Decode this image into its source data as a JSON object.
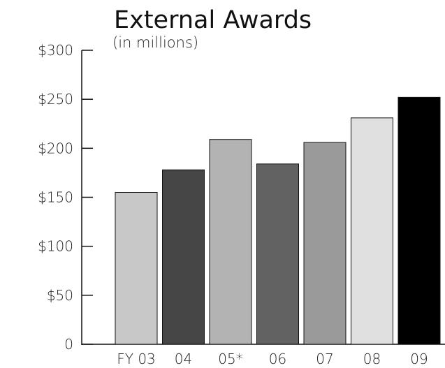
{
  "chart_data": {
    "type": "bar",
    "title": "External Awards",
    "subtitle": "(in millions)",
    "categories": [
      "FY 03",
      "04",
      "05*",
      "06",
      "07",
      "08",
      "09"
    ],
    "values": [
      155,
      178,
      209,
      184,
      206,
      231,
      252
    ],
    "ylim": [
      0,
      300
    ],
    "y_ticks": [
      0,
      50,
      100,
      150,
      200,
      250,
      300
    ],
    "y_tick_labels": [
      "0",
      "$50",
      "$100",
      "$150",
      "$200",
      "$250",
      "$300"
    ],
    "xlabel": "",
    "ylabel": "",
    "grid": false,
    "legend": "none",
    "bar_colors": [
      "#c8c8c8",
      "#464646",
      "#b3b3b3",
      "#626262",
      "#9a9a9a",
      "#e0e0e0",
      "#000000"
    ]
  }
}
